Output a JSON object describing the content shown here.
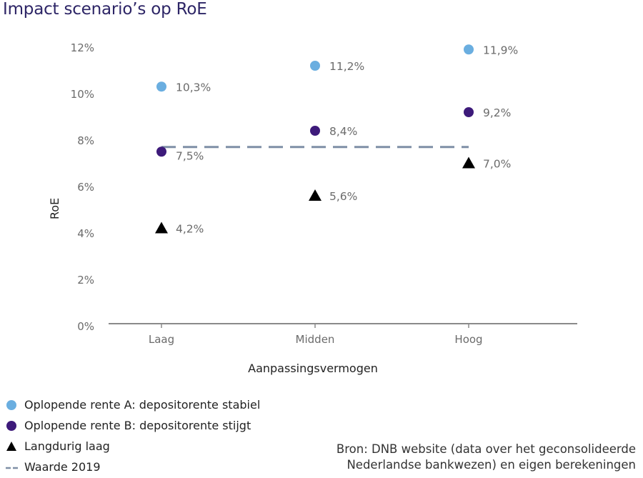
{
  "title": "Impact scenario’s op RoE",
  "chart_data": {
    "type": "scatter",
    "title": "Impact scenario’s op RoE",
    "xlabel": "Aanpassingsvermogen",
    "ylabel": "RoE",
    "categories": [
      "Laag",
      "Midden",
      "Hoog"
    ],
    "yticks": [
      "0%",
      "2%",
      "4%",
      "6%",
      "8%",
      "10%",
      "12%"
    ],
    "ytick_values": [
      0,
      2,
      4,
      6,
      8,
      10,
      12
    ],
    "ylim": [
      0,
      12
    ],
    "grid": false,
    "series": [
      {
        "name": "Oplopende rente A: depositorente stabiel",
        "marker": "circle",
        "color": "#6aaee0",
        "values": [
          10.3,
          11.2,
          11.9
        ],
        "labels": [
          "10,3%",
          "11,2%",
          "11,9%"
        ]
      },
      {
        "name": "Oplopende rente B: depositorente stijgt",
        "marker": "circle",
        "color": "#3d1a7a",
        "values": [
          7.5,
          8.4,
          9.2
        ],
        "labels": [
          "7,5%",
          "8,4%",
          "9,2%"
        ]
      },
      {
        "name": "Langdurig laag",
        "marker": "triangle",
        "color": "#000000",
        "values": [
          4.2,
          5.6,
          7.0
        ],
        "labels": [
          "4,2%",
          "5,6%",
          "7,0%"
        ]
      }
    ],
    "reference_line": {
      "name": "Waarde 2019",
      "value": 7.7,
      "style": "dashed",
      "color": "#7f8fa6"
    },
    "legend_position": "bottom-left"
  },
  "legend": [
    {
      "label": "Oplopende rente A: depositorente stabiel",
      "icon": "circle-light-blue"
    },
    {
      "label": "Oplopende rente B: depositorente stijgt",
      "icon": "circle-dark-purple"
    },
    {
      "label": "Langdurig laag",
      "icon": "triangle-black"
    },
    {
      "label": "Waarde 2019",
      "icon": "dashed-line"
    }
  ],
  "source": {
    "line1": "Bron: DNB website (data over het geconsolideerde",
    "line2": "Nederlandse bankwezen) en eigen berekeningen"
  }
}
